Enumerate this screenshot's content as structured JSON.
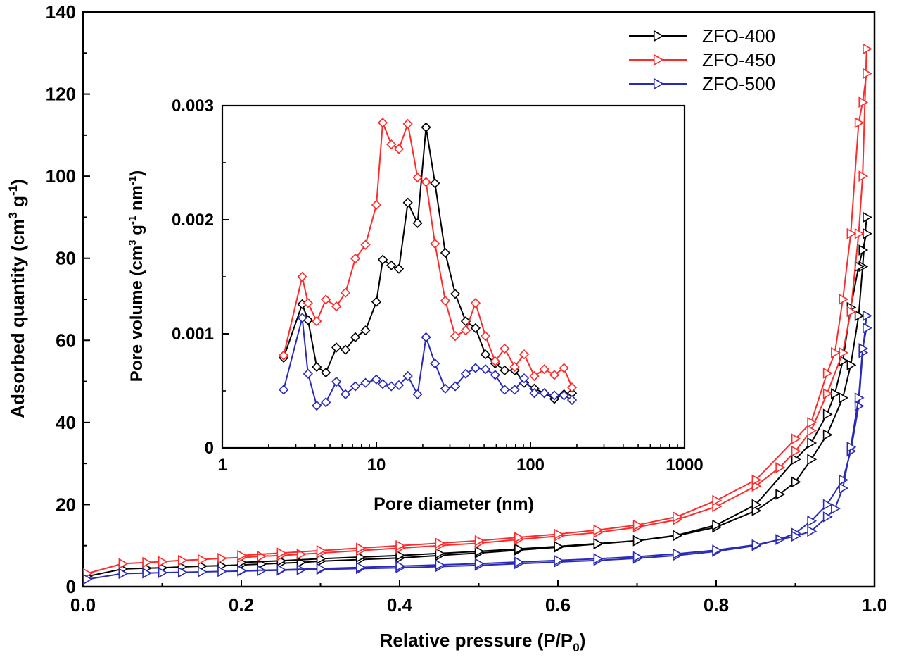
{
  "chart_data": [
    {
      "type": "line",
      "xlabel": "Relative pressure (P/P",
      "xlabel_sub": "0",
      "xlabel_tail": ")",
      "ylabel": "Adsorbed quantity (cm",
      "ylabel_sup1": "3",
      "ylabel_mid": " g",
      "ylabel_sup2": "-1",
      "ylabel_tail": ")",
      "xlim": [
        0.0,
        1.0
      ],
      "ylim": [
        0,
        140
      ],
      "xticks": [
        "0.0",
        "0.2",
        "0.4",
        "0.6",
        "0.8",
        "1.0"
      ],
      "yticks": [
        "0",
        "20",
        "40",
        "60",
        "80",
        "100",
        "120",
        "140"
      ],
      "legend_position": "top-right",
      "marker": "triangle-right",
      "series": [
        {
          "name": "ZFO-400",
          "color": "#000000",
          "adsorption": {
            "x": [
              0.005,
              0.05,
              0.08,
              0.1,
              0.125,
              0.15,
              0.175,
              0.2,
              0.225,
              0.25,
              0.275,
              0.3,
              0.35,
              0.4,
              0.45,
              0.5,
              0.55,
              0.6,
              0.65,
              0.7,
              0.75,
              0.8,
              0.85,
              0.88,
              0.9,
              0.92,
              0.94,
              0.96,
              0.97,
              0.98,
              0.985,
              0.99
            ],
            "y": [
              2.5,
              4.3,
              4.5,
              4.6,
              4.8,
              5.0,
              5.1,
              5.3,
              5.5,
              5.7,
              5.9,
              6.2,
              6.6,
              7.0,
              7.6,
              8.2,
              8.9,
              9.6,
              10.4,
              11.2,
              12.4,
              14.5,
              18.5,
              22.5,
              25.5,
              31,
              37,
              46,
              54,
              66,
              78,
              90
            ]
          },
          "desorption": {
            "x": [
              0.99,
              0.985,
              0.98,
              0.97,
              0.96,
              0.95,
              0.94,
              0.92,
              0.9,
              0.85,
              0.8,
              0.75,
              0.7,
              0.65,
              0.6,
              0.55,
              0.5,
              0.45,
              0.4,
              0.35,
              0.3,
              0.25,
              0.2
            ],
            "y": [
              86,
              82,
              78,
              68,
              55,
              47,
              42,
              35,
              31,
              20,
              15,
              12.5,
              11.2,
              10.5,
              9.8,
              9.2,
              8.6,
              8.1,
              7.6,
              7.2,
              6.8,
              6.3,
              5.9
            ]
          }
        },
        {
          "name": "ZFO-450",
          "color": "#ff2a2a",
          "adsorption": {
            "x": [
              0.005,
              0.05,
              0.08,
              0.1,
              0.125,
              0.15,
              0.175,
              0.2,
              0.225,
              0.25,
              0.275,
              0.3,
              0.35,
              0.4,
              0.45,
              0.5,
              0.55,
              0.6,
              0.65,
              0.7,
              0.75,
              0.8,
              0.85,
              0.88,
              0.9,
              0.92,
              0.94,
              0.96,
              0.97,
              0.98,
              0.985,
              0.99
            ],
            "y": [
              3.2,
              5.6,
              5.9,
              6.1,
              6.4,
              6.6,
              6.9,
              7.1,
              7.4,
              7.6,
              7.9,
              8.2,
              8.8,
              9.4,
              10.0,
              10.6,
              11.5,
              12.3,
              13.2,
              14.5,
              16.3,
              19.5,
              24.5,
              29,
              33,
              38,
              47,
              57,
              67,
              86,
              100,
              131
            ]
          },
          "desorption": {
            "x": [
              0.99,
              0.985,
              0.98,
              0.97,
              0.96,
              0.95,
              0.94,
              0.92,
              0.9,
              0.85,
              0.8,
              0.75,
              0.7,
              0.65,
              0.6,
              0.55,
              0.5,
              0.45,
              0.4,
              0.35,
              0.3,
              0.25,
              0.2
            ],
            "y": [
              125,
              118,
              113,
              86,
              70,
              57,
              52,
              40,
              36,
              26,
              21,
              17,
              15,
              13.8,
              12.8,
              12.0,
              11.2,
              10.6,
              10.0,
              9.4,
              8.8,
              8.2,
              7.6
            ]
          }
        },
        {
          "name": "ZFO-500",
          "color": "#2a2ab8",
          "adsorption": {
            "x": [
              0.005,
              0.05,
              0.08,
              0.1,
              0.125,
              0.15,
              0.175,
              0.2,
              0.225,
              0.25,
              0.275,
              0.3,
              0.35,
              0.4,
              0.45,
              0.5,
              0.55,
              0.6,
              0.65,
              0.7,
              0.75,
              0.8,
              0.85,
              0.88,
              0.9,
              0.92,
              0.94,
              0.96,
              0.97,
              0.98,
              0.985,
              0.99
            ],
            "y": [
              1.8,
              3.2,
              3.3,
              3.4,
              3.5,
              3.6,
              3.7,
              3.8,
              3.9,
              4.0,
              4.1,
              4.2,
              4.4,
              4.6,
              4.9,
              5.2,
              5.6,
              6.0,
              6.4,
              6.9,
              7.6,
              8.6,
              10.0,
              11.5,
              13,
              16,
              20,
              26,
              33,
              44,
              57,
              66
            ]
          },
          "desorption": {
            "x": [
              0.99,
              0.985,
              0.98,
              0.97,
              0.96,
              0.95,
              0.94,
              0.92,
              0.9,
              0.85,
              0.8,
              0.75,
              0.7,
              0.65,
              0.6,
              0.55,
              0.5,
              0.45,
              0.4,
              0.35,
              0.3,
              0.25,
              0.2
            ],
            "y": [
              63,
              58,
              46,
              34,
              24,
              19,
              17,
              13.5,
              12.3,
              10.2,
              8.9,
              8.0,
              7.3,
              6.8,
              6.4,
              6.0,
              5.6,
              5.3,
              5.0,
              4.7,
              4.4,
              4.1,
              3.9
            ]
          }
        }
      ]
    },
    {
      "type": "line",
      "inset": true,
      "xlabel": "Pore diameter (nm)",
      "ylabel": "Pore volume (cm",
      "ylabel_sup1": "3",
      "ylabel_mid1": " g",
      "ylabel_sup2": "-1",
      "ylabel_mid2": " nm",
      "ylabel_sup3": "-1",
      "ylabel_tail": ")",
      "xscale": "log",
      "xlim": [
        1,
        1000
      ],
      "ylim": [
        0,
        0.003
      ],
      "xticks": [
        "1",
        "10",
        "100",
        "1000"
      ],
      "yticks": [
        "0",
        "0.001",
        "0.002",
        "0.003"
      ],
      "marker": "diamond",
      "series": [
        {
          "name": "ZFO-400",
          "color": "#000000",
          "x": [
            2.5,
            3.3,
            3.6,
            4.1,
            4.7,
            5.5,
            6.3,
            7.3,
            8.5,
            10.0,
            11.0,
            12.5,
            14.0,
            16.0,
            18.5,
            21.0,
            24.0,
            28.0,
            32.5,
            38.0,
            44.0,
            51.0,
            59.0,
            68.0,
            79.0,
            91.0,
            106.0,
            123.0,
            143.0,
            165.0,
            186.0
          ],
          "y": [
            0.00079,
            0.00126,
            0.00112,
            0.00071,
            0.00066,
            0.00088,
            0.00086,
            0.00097,
            0.00103,
            0.00128,
            0.00165,
            0.0016,
            0.00157,
            0.00215,
            0.00197,
            0.00281,
            0.00232,
            0.00171,
            0.00135,
            0.00111,
            0.00105,
            0.00082,
            0.00074,
            0.00068,
            0.00068,
            0.00057,
            0.00052,
            0.00048,
            0.00043,
            0.00047,
            0.00048
          ]
        },
        {
          "name": "ZFO-450",
          "color": "#ff2a2a",
          "x": [
            2.5,
            3.3,
            3.6,
            4.1,
            4.7,
            5.5,
            6.3,
            7.3,
            8.5,
            10.0,
            11.0,
            12.5,
            14.0,
            16.0,
            18.5,
            21.0,
            24.0,
            28.0,
            32.5,
            38.0,
            44.0,
            51.0,
            59.0,
            68.0,
            79.0,
            91.0,
            106.0,
            123.0,
            143.0,
            165.0,
            186.0
          ],
          "y": [
            0.00081,
            0.0015,
            0.00127,
            0.00111,
            0.0013,
            0.00124,
            0.00136,
            0.00166,
            0.00178,
            0.00213,
            0.00285,
            0.00266,
            0.00262,
            0.00284,
            0.00237,
            0.00233,
            0.00179,
            0.00129,
            0.00098,
            0.00103,
            0.00127,
            0.00098,
            0.00076,
            0.00087,
            0.00071,
            0.00082,
            0.00063,
            0.00069,
            0.00064,
            0.0007,
            0.00053
          ]
        },
        {
          "name": "ZFO-500",
          "color": "#2a2ab8",
          "x": [
            2.5,
            3.3,
            3.6,
            4.1,
            4.7,
            5.5,
            6.3,
            7.3,
            8.5,
            10.0,
            11.0,
            12.5,
            14.0,
            16.0,
            18.5,
            21.0,
            24.0,
            28.0,
            32.5,
            38.0,
            44.0,
            51.0,
            59.0,
            68.0,
            79.0,
            91.0,
            106.0,
            123.0,
            143.0,
            165.0,
            186.0
          ],
          "y": [
            0.00051,
            0.00114,
            0.00065,
            0.00037,
            0.0004,
            0.00058,
            0.00047,
            0.00054,
            0.00057,
            0.0006,
            0.00056,
            0.00054,
            0.00055,
            0.00063,
            0.00047,
            0.00097,
            0.00074,
            0.00052,
            0.00054,
            0.00065,
            0.0007,
            0.00069,
            0.00064,
            0.00051,
            0.00051,
            0.00061,
            0.00048,
            0.00048,
            0.00046,
            0.00046,
            0.00042
          ]
        }
      ]
    }
  ]
}
